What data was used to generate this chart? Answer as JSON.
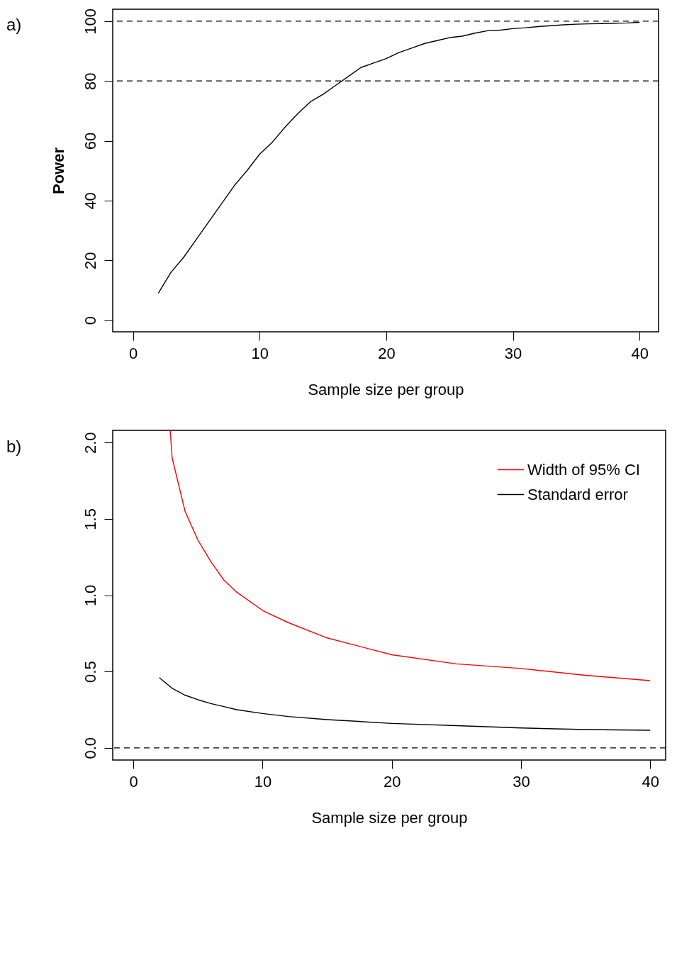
{
  "chart_data": [
    {
      "type": "line",
      "title": "a)",
      "xlabel": "Sample size per group",
      "ylabel": "Power",
      "x": [
        2,
        3,
        4,
        5,
        6,
        7,
        8,
        9,
        10,
        11,
        12,
        13,
        14,
        15,
        16,
        17,
        18,
        19,
        20,
        21,
        22,
        23,
        24,
        25,
        26,
        27,
        28,
        29,
        30,
        31,
        32,
        33,
        34,
        35,
        36,
        37,
        38,
        39,
        40
      ],
      "series": [
        {
          "color": "#000000",
          "values": [
            9,
            16,
            21,
            27,
            33,
            39,
            45,
            50,
            55.5,
            59.5,
            64.5,
            69,
            73,
            75.5,
            78.5,
            81.5,
            84.5,
            86,
            87.5,
            89.5,
            91,
            92.5,
            93.5,
            94.5,
            95,
            96,
            96.8,
            97,
            97.5,
            97.8,
            98.2,
            98.5,
            98.8,
            99,
            99.1,
            99.2,
            99.3,
            99.4,
            99.6
          ]
        }
      ],
      "xlim": [
        -1.6,
        41.5
      ],
      "ylim": [
        -3.9,
        104
      ],
      "xticks": [
        0,
        10,
        20,
        30,
        40
      ],
      "yticks": [
        0,
        20,
        40,
        60,
        80,
        100
      ],
      "grid": false,
      "ref_lines": [
        {
          "axis": "y",
          "value": 80,
          "line_style": "dashed"
        },
        {
          "axis": "y",
          "value": 100,
          "line_style": "dashed"
        }
      ]
    },
    {
      "type": "line",
      "title": "b)",
      "xlabel": "Sample size per group",
      "legend": "top right",
      "series": [
        {
          "name": "Width of 95% CI",
          "color": "#ff0000",
          "x": [
            2.85,
            3,
            4,
            5,
            6,
            7,
            8,
            10,
            12,
            15,
            20,
            25,
            30,
            35,
            40
          ],
          "values": [
            2.08,
            1.9,
            1.55,
            1.36,
            1.22,
            1.1,
            1.02,
            0.9,
            0.82,
            0.72,
            0.61,
            0.55,
            0.52,
            0.475,
            0.44
          ]
        },
        {
          "name": "Standard error",
          "color": "#000000",
          "x": [
            2,
            3,
            4,
            5,
            6,
            7,
            8,
            10,
            12,
            15,
            20,
            25,
            30,
            35,
            40
          ],
          "values": [
            0.46,
            0.39,
            0.345,
            0.315,
            0.29,
            0.27,
            0.25,
            0.225,
            0.205,
            0.185,
            0.16,
            0.145,
            0.13,
            0.12,
            0.115
          ]
        }
      ],
      "xlim": [
        -1.6,
        41.2
      ],
      "ylim": [
        -0.08,
        2.08
      ],
      "xticks": [
        0,
        10,
        20,
        30,
        40
      ],
      "yticks": [
        {
          "value": 0,
          "label": "0.0"
        },
        0.5,
        {
          "value": 1,
          "label": "1.0"
        },
        1.5,
        {
          "value": 2,
          "label": "2.0"
        }
      ],
      "grid": false,
      "ref_lines": [
        {
          "axis": "y",
          "value": 0,
          "line_style": "dashed"
        }
      ]
    }
  ]
}
